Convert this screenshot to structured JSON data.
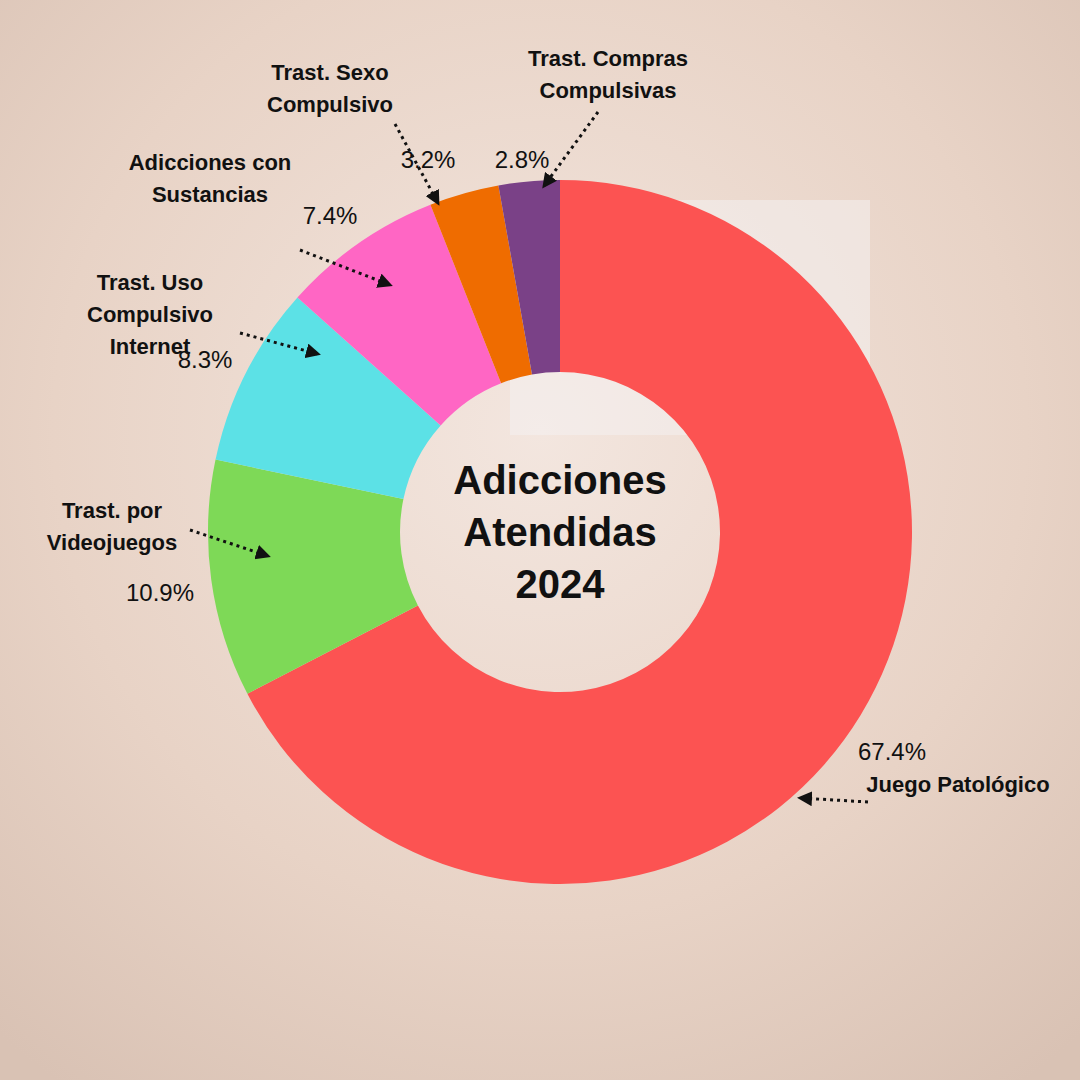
{
  "chart_data": {
    "type": "donut",
    "title": "Adicciones Atendidas 2024",
    "categories": [
      "Juego Patológico",
      "Trast. por Videojuegos",
      "Trast. Uso Compulsivo Internet",
      "Adicciones con Sustancias",
      "Trast. Sexo Compulsivo",
      "Trast. Compras Compulsivas"
    ],
    "values": [
      67.4,
      10.9,
      8.3,
      7.4,
      3.2,
      2.8
    ],
    "value_labels": [
      "67.4%",
      "10.9%",
      "8.3%",
      "7.4%",
      "3.2%",
      "2.8%"
    ],
    "colors": [
      "#fc5352",
      "#7ed957",
      "#5ce1e6",
      "#ff66c4",
      "#ef6c00",
      "#7a4187"
    ],
    "data_labels": true
  }
}
